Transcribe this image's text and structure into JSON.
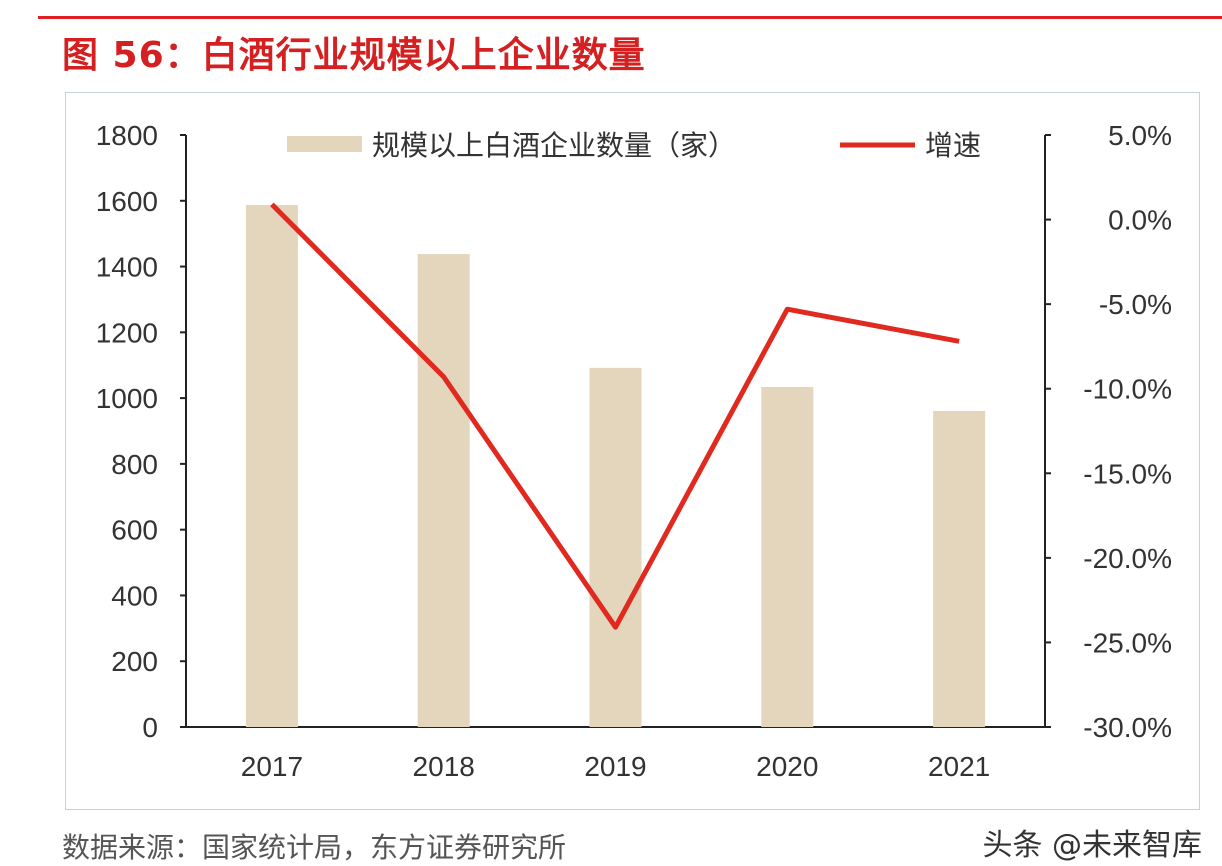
{
  "title": "图 56：白酒行业规模以上企业数量",
  "source": "数据来源：国家统计局，东方证券研究所",
  "watermark": "头条 @未来智库",
  "chart_data": {
    "type": "bar+line",
    "categories": [
      "2017",
      "2018",
      "2019",
      "2020",
      "2021"
    ],
    "series": [
      {
        "name": "规模以上白酒企业数量（家）",
        "type": "bar",
        "axis": "left",
        "color": "#e3d6bd",
        "values": [
          1587,
          1438,
          1092,
          1034,
          961
        ]
      },
      {
        "name": "增速",
        "type": "line",
        "axis": "right",
        "unit": "%",
        "color": "#e02a1f",
        "values": [
          0.9,
          -9.3,
          -24.1,
          -5.3,
          -7.2
        ]
      }
    ],
    "left_axis": {
      "ylim": [
        0,
        1800
      ],
      "ticks": [
        "0",
        "200",
        "400",
        "600",
        "800",
        "1000",
        "1200",
        "1400",
        "1600",
        "1800"
      ]
    },
    "right_axis": {
      "ylim": [
        -30,
        5
      ],
      "ticks": [
        "-30.0%",
        "-25.0%",
        "-20.0%",
        "-15.0%",
        "-10.0%",
        "-5.0%",
        "0.0%",
        "5.0%"
      ]
    },
    "legend": "top",
    "grid": false
  }
}
